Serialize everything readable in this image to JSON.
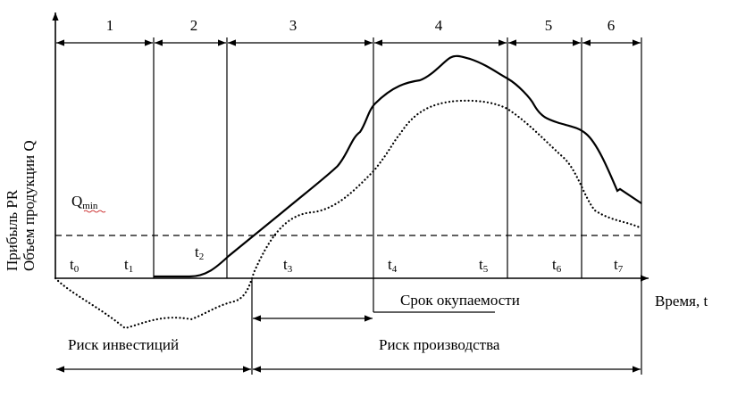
{
  "phases": [
    "1",
    "2",
    "3",
    "4",
    "5",
    "6"
  ],
  "y_axis_labels": [
    "Прибыль PR",
    "Объем  продукции  Q"
  ],
  "x_axis_label": "Время, t",
  "qmin": {
    "main": "Q",
    "sub": "min"
  },
  "time_marks": [
    {
      "main": "t",
      "sub": "0"
    },
    {
      "main": "t",
      "sub": "1"
    },
    {
      "main": "t",
      "sub": "2"
    },
    {
      "main": "t",
      "sub": "3"
    },
    {
      "main": "t",
      "sub": "4"
    },
    {
      "main": "t",
      "sub": "5"
    },
    {
      "main": "t",
      "sub": "6"
    },
    {
      "main": "t",
      "sub": "7"
    }
  ],
  "payback_label": "Срок окупаемости",
  "investment_risk_label": "Риск инвестиций",
  "production_risk_label": "Риск производства",
  "colors": {
    "ink": "#000000",
    "qmin_underline": "#c00000"
  }
}
